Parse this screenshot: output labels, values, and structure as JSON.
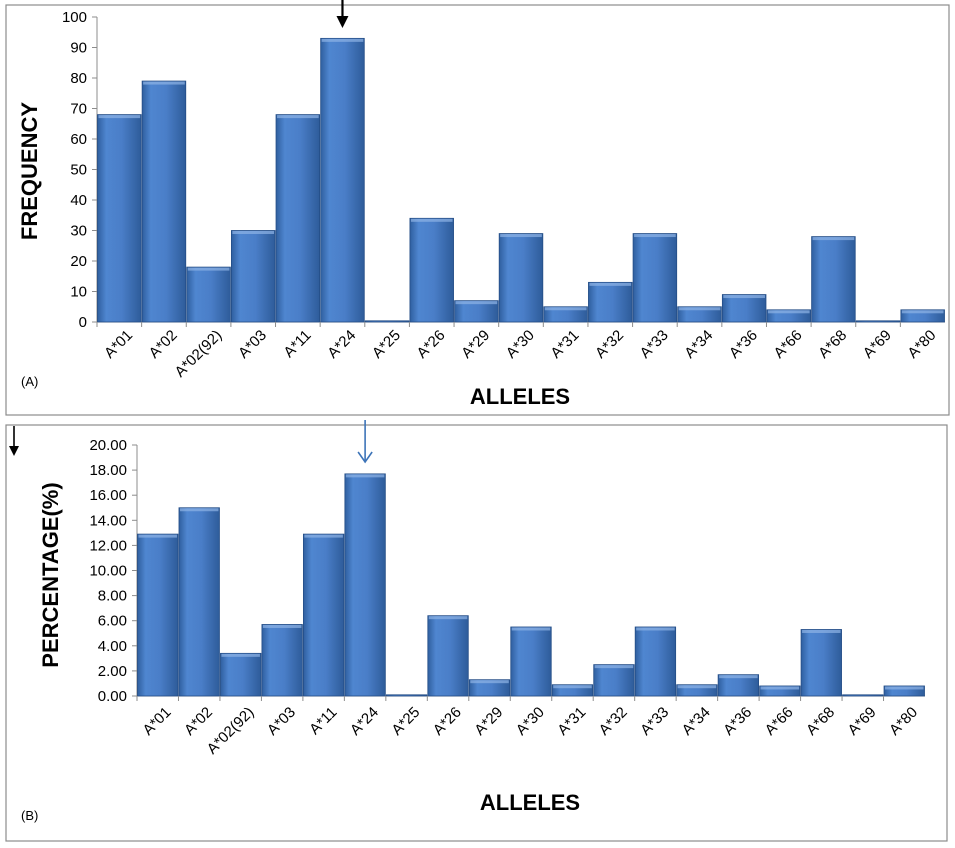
{
  "chart_data": [
    {
      "type": "bar",
      "panel_label": "(A)",
      "categories": [
        "A*01",
        "A*02",
        "A*02(92)",
        "A*03",
        "A*11",
        "A*24",
        "A*25",
        "A*26",
        "A*29",
        "A*30",
        "A*31",
        "A*32",
        "A*33",
        "A*34",
        "A*36",
        "A*66",
        "A*68",
        "A*69",
        "A*80"
      ],
      "values": [
        68,
        79,
        18,
        30,
        68,
        93,
        0,
        34,
        7,
        29,
        5,
        13,
        29,
        5,
        9,
        4,
        28,
        0,
        4
      ],
      "xlabel": "ALLELES",
      "ylabel": "FREQUENCY",
      "ylim": [
        0,
        100
      ],
      "yticks": [
        0,
        10,
        20,
        30,
        40,
        50,
        60,
        70,
        80,
        90,
        100
      ],
      "ytick_labels": [
        "0",
        "10",
        "20",
        "30",
        "40",
        "50",
        "60",
        "70",
        "80",
        "90",
        "100"
      ],
      "highlighted_category": "A*24",
      "grid": false,
      "bar_color": "#4a7ec8",
      "arrow_color": "#000000"
    },
    {
      "type": "bar",
      "panel_label": "(B)",
      "categories": [
        "A*01",
        "A*02",
        "A*02(92)",
        "A*03",
        "A*11",
        "A*24",
        "A*25",
        "A*26",
        "A*29",
        "A*30",
        "A*31",
        "A*32",
        "A*33",
        "A*34",
        "A*36",
        "A*66",
        "A*68",
        "A*69",
        "A*80"
      ],
      "values": [
        12.9,
        15.0,
        3.4,
        5.7,
        12.9,
        17.7,
        0.0,
        6.4,
        1.3,
        5.5,
        0.9,
        2.5,
        5.5,
        0.9,
        1.7,
        0.8,
        5.3,
        0.0,
        0.8
      ],
      "xlabel": "ALLELES",
      "ylabel": "PERCENTAGE(%)",
      "ylim": [
        0,
        20
      ],
      "yticks": [
        0,
        2,
        4,
        6,
        8,
        10,
        12,
        14,
        16,
        18,
        20
      ],
      "ytick_labels": [
        "0.00",
        "2.00",
        "4.00",
        "6.00",
        "8.00",
        "10.00",
        "12.00",
        "14.00",
        "16.00",
        "18.00",
        "20.00"
      ],
      "highlighted_category": "A*24",
      "grid": false,
      "bar_color": "#4a7ec8",
      "arrow_color": "#3d74b8"
    }
  ]
}
